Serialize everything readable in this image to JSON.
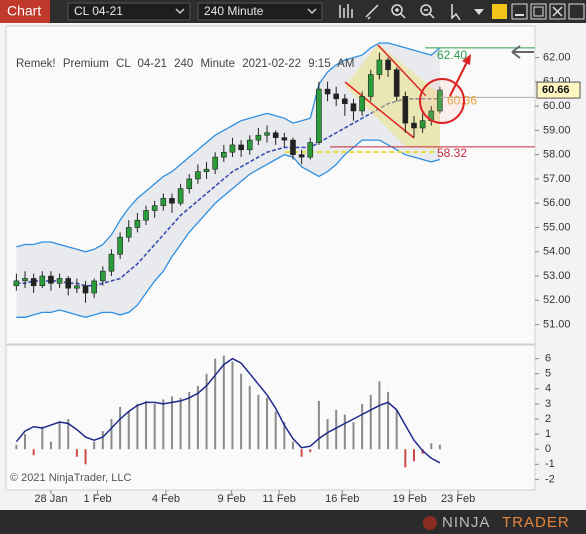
{
  "toolbar": {
    "title": "Chart",
    "instrument": "CL 04-21",
    "interval": "240 Minute"
  },
  "copyright": "© 2021 NinjaTrader, LLC",
  "logo": {
    "part1": "NINJA",
    "part2": "TRADER"
  },
  "chart_data": [
    {
      "type": "candlestick",
      "title": "Remek! Premium CL 04-21 240 Minute 2021-02-22 9:15 AM",
      "up_color": "#2a9d3a",
      "down_color": "#222222",
      "band_color": "#2f8fe0",
      "middle_color": "#3a4fb0",
      "band_fill": "#e3e6eb",
      "ohlc": [
        [
          52.6,
          53.1,
          52.4,
          52.8
        ],
        [
          52.8,
          53.2,
          52.5,
          52.9
        ],
        [
          52.9,
          53.1,
          52.3,
          52.6
        ],
        [
          52.6,
          53.2,
          52.5,
          53.0
        ],
        [
          53.0,
          53.2,
          52.4,
          52.7
        ],
        [
          52.7,
          53.1,
          52.5,
          52.9
        ],
        [
          52.9,
          53.0,
          52.2,
          52.5
        ],
        [
          52.5,
          52.9,
          52.3,
          52.6
        ],
        [
          52.6,
          52.8,
          51.9,
          52.3
        ],
        [
          52.3,
          52.9,
          52.1,
          52.8
        ],
        [
          52.8,
          53.4,
          52.6,
          53.2
        ],
        [
          53.2,
          54.1,
          53.0,
          53.9
        ],
        [
          53.9,
          54.8,
          53.7,
          54.6
        ],
        [
          54.6,
          55.3,
          54.4,
          55.0
        ],
        [
          55.0,
          55.6,
          54.8,
          55.3
        ],
        [
          55.3,
          55.9,
          55.1,
          55.7
        ],
        [
          55.7,
          56.1,
          55.4,
          55.9
        ],
        [
          55.9,
          56.4,
          55.7,
          56.2
        ],
        [
          56.2,
          56.4,
          55.6,
          56.0
        ],
        [
          56.0,
          56.8,
          55.9,
          56.6
        ],
        [
          56.6,
          57.2,
          56.4,
          57.0
        ],
        [
          57.0,
          57.6,
          56.8,
          57.3
        ],
        [
          57.3,
          57.7,
          57.0,
          57.4
        ],
        [
          57.4,
          58.1,
          57.2,
          57.9
        ],
        [
          57.9,
          58.4,
          57.7,
          58.1
        ],
        [
          58.1,
          58.7,
          57.9,
          58.4
        ],
        [
          58.4,
          58.6,
          57.9,
          58.2
        ],
        [
          58.2,
          58.8,
          58.0,
          58.6
        ],
        [
          58.6,
          59.1,
          58.4,
          58.8
        ],
        [
          58.8,
          59.2,
          58.5,
          58.9
        ],
        [
          58.9,
          59.0,
          58.4,
          58.7
        ],
        [
          58.7,
          58.9,
          58.3,
          58.6
        ],
        [
          58.6,
          58.7,
          57.8,
          58.0
        ],
        [
          58.0,
          58.2,
          57.6,
          57.9
        ],
        [
          57.9,
          58.7,
          57.8,
          58.5
        ],
        [
          58.5,
          61.0,
          58.4,
          60.7
        ],
        [
          60.7,
          61.0,
          60.2,
          60.5
        ],
        [
          60.5,
          60.8,
          60.0,
          60.3
        ],
        [
          60.3,
          60.5,
          59.6,
          60.1
        ],
        [
          60.1,
          60.3,
          59.4,
          59.8
        ],
        [
          59.8,
          60.6,
          59.6,
          60.4
        ],
        [
          60.4,
          61.5,
          60.2,
          61.3
        ],
        [
          61.3,
          62.2,
          61.1,
          61.9
        ],
        [
          61.9,
          62.0,
          61.2,
          61.5
        ],
        [
          61.5,
          61.6,
          60.2,
          60.4
        ],
        [
          60.4,
          60.6,
          58.9,
          59.3
        ],
        [
          59.3,
          59.6,
          58.7,
          59.1
        ],
        [
          59.1,
          59.7,
          58.9,
          59.4
        ],
        [
          59.4,
          60.0,
          59.2,
          59.8
        ],
        [
          59.8,
          60.8,
          59.7,
          60.66
        ]
      ],
      "upper": [
        54.2,
        54.3,
        54.3,
        54.4,
        54.4,
        54.3,
        54.2,
        54.1,
        54.0,
        54.1,
        54.3,
        54.7,
        55.3,
        55.8,
        56.2,
        56.5,
        56.8,
        57.1,
        57.3,
        57.6,
        57.9,
        58.2,
        58.5,
        58.8,
        59.0,
        59.2,
        59.4,
        59.5,
        59.6,
        59.7,
        59.6,
        59.5,
        59.3,
        59.4,
        59.5,
        60.9,
        61.4,
        61.7,
        61.9,
        62.0,
        62.1,
        62.4,
        62.6,
        62.6,
        62.5,
        62.4,
        62.3,
        62.2,
        62.1,
        62.4
      ],
      "middle": [
        52.7,
        52.7,
        52.8,
        52.8,
        52.8,
        52.8,
        52.7,
        52.7,
        52.6,
        52.6,
        52.7,
        52.8,
        52.9,
        53.2,
        53.5,
        53.9,
        54.3,
        54.7,
        55.1,
        55.5,
        55.8,
        56.1,
        56.4,
        56.7,
        57.0,
        57.3,
        57.5,
        57.7,
        57.9,
        58.1,
        58.2,
        58.3,
        58.3,
        58.3,
        58.3,
        58.5,
        58.7,
        58.9,
        59.1,
        59.3,
        59.5,
        59.7,
        59.9,
        60.1,
        60.2,
        60.3,
        60.3,
        60.3,
        60.3,
        60.3
      ],
      "lower": [
        51.3,
        51.3,
        51.4,
        51.5,
        51.5,
        51.6,
        51.5,
        51.4,
        51.3,
        51.4,
        51.5,
        51.5,
        51.4,
        51.5,
        51.8,
        52.3,
        52.8,
        53.2,
        53.8,
        54.3,
        54.8,
        55.2,
        55.6,
        56.0,
        56.3,
        56.6,
        56.9,
        57.2,
        57.4,
        57.6,
        57.8,
        58.0,
        57.9,
        57.5,
        57.3,
        57.1,
        57.3,
        57.6,
        58.0,
        58.3,
        58.6,
        58.6,
        58.6,
        58.4,
        58.2,
        58.0,
        57.9,
        57.8,
        57.7,
        57.8
      ],
      "xlim": [
        -1.2,
        60
      ],
      "ylim": [
        50.2,
        63.3
      ],
      "yticks": [
        {
          "value": 51,
          "label": "51.00"
        },
        {
          "value": 52,
          "label": "52.00"
        },
        {
          "value": 53,
          "label": "53.00"
        },
        {
          "value": 54,
          "label": "54.00"
        },
        {
          "value": 55,
          "label": "55.00"
        },
        {
          "value": 56,
          "label": "56.00"
        },
        {
          "value": 57,
          "label": "57.00"
        },
        {
          "value": 58,
          "label": "58.00"
        },
        {
          "value": 59,
          "label": "59.00"
        },
        {
          "value": 60,
          "label": "60.00"
        },
        {
          "value": 61,
          "label": "61.00"
        },
        {
          "value": 62,
          "label": "62.00"
        }
      ],
      "levels": [
        {
          "value": 62.4,
          "label": "62.40",
          "color": "#2e9e4f"
        },
        {
          "value": 60.36,
          "label": "60.36",
          "color": "#e8a33a"
        },
        {
          "value": 58.32,
          "label": "58.32",
          "color": "#c8283c"
        }
      ],
      "last_price": {
        "value": 60.66,
        "label": "60.66"
      }
    },
    {
      "type": "oscillator",
      "bar_color": "#8a8a8a",
      "negative_color": "#d04a4a",
      "line_color": "#1f2a8a",
      "bars": [
        0.3,
        1.0,
        -0.4,
        1.5,
        0.5,
        1.8,
        2.0,
        -0.5,
        -1.0,
        0.5,
        1.2,
        2.0,
        2.8,
        2.5,
        3.0,
        3.2,
        3.0,
        3.3,
        3.5,
        3.4,
        3.8,
        4.2,
        5.0,
        6.0,
        6.2,
        5.8,
        5.0,
        4.2,
        3.6,
        3.4,
        2.5,
        1.8,
        0.5,
        -0.5,
        -0.2,
        3.2,
        2.0,
        2.6,
        2.3,
        1.8,
        3.0,
        3.6,
        4.5,
        3.8,
        2.6,
        -1.2,
        -0.8,
        -0.3,
        0.4,
        0.3
      ],
      "line": [
        0.5,
        1.2,
        1.5,
        1.4,
        1.6,
        1.8,
        1.7,
        1.3,
        0.8,
        0.6,
        0.8,
        1.4,
        2.0,
        2.5,
        2.9,
        3.1,
        3.1,
        3.0,
        3.1,
        3.2,
        3.4,
        3.7,
        4.2,
        4.9,
        5.6,
        6.0,
        5.7,
        5.0,
        4.3,
        3.6,
        2.7,
        1.6,
        0.7,
        0.1,
        0.2,
        0.7,
        1.1,
        1.4,
        1.7,
        2.0,
        2.3,
        2.6,
        2.9,
        3.1,
        2.6,
        1.6,
        0.6,
        -0.1,
        -0.6,
        -0.9
      ],
      "xlim": [
        -1.2,
        60
      ],
      "xticks": [
        {
          "value": 4,
          "label": "28 Jan"
        },
        {
          "value": 9.4,
          "label": "1 Feb"
        },
        {
          "value": 17.3,
          "label": "4 Feb"
        },
        {
          "value": 24.9,
          "label": "9 Feb"
        },
        {
          "value": 30.4,
          "label": "11 Feb"
        },
        {
          "value": 37.7,
          "label": "16 Feb"
        },
        {
          "value": 45.5,
          "label": "19 Feb"
        },
        {
          "value": 51.1,
          "label": "23 Feb"
        }
      ],
      "ylim": [
        -2.7,
        6.9
      ],
      "yticks": [
        -2,
        -1,
        0,
        1,
        2,
        3,
        4,
        5,
        6
      ]
    }
  ]
}
